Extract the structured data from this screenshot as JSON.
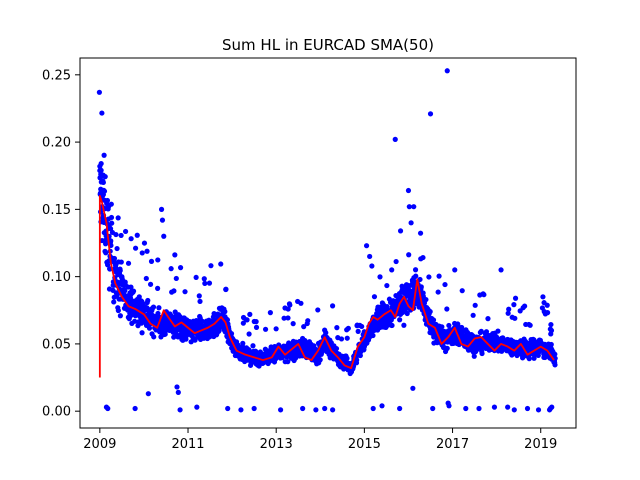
{
  "chart_data": {
    "type": "scatter",
    "title": "Sum HL in EURCAD SMA(50)",
    "xlabel": "",
    "ylabel": "",
    "xlim": [
      2008.55,
      2019.8
    ],
    "ylim": [
      -0.0125,
      0.2625
    ],
    "x_ticks": [
      {
        "value": 2009,
        "label": "2009"
      },
      {
        "value": 2011,
        "label": "2011"
      },
      {
        "value": 2013,
        "label": "2013"
      },
      {
        "value": 2015,
        "label": "2015"
      },
      {
        "value": 2017,
        "label": "2017"
      },
      {
        "value": 2019,
        "label": "2019"
      }
    ],
    "y_ticks": [
      {
        "value": 0.0,
        "label": "0.00"
      },
      {
        "value": 0.05,
        "label": "0.05"
      },
      {
        "value": 0.1,
        "label": "0.10"
      },
      {
        "value": 0.15,
        "label": "0.15"
      },
      {
        "value": 0.2,
        "label": "0.20"
      },
      {
        "value": 0.25,
        "label": "0.25"
      }
    ],
    "grid": false,
    "legend": "none",
    "colors": {
      "points": "#0000ff",
      "sma": "#ff0000",
      "axes": "#000000"
    },
    "sma_series": {
      "x": [
        2009.0,
        2009.0,
        2009.05,
        2009.15,
        2009.25,
        2009.35,
        2009.5,
        2009.65,
        2009.8,
        2010.0,
        2010.15,
        2010.3,
        2010.45,
        2010.55,
        2010.7,
        2010.85,
        2011.0,
        2011.15,
        2011.3,
        2011.45,
        2011.6,
        2011.75,
        2011.85,
        2011.95,
        2012.1,
        2012.3,
        2012.5,
        2012.7,
        2012.9,
        2013.05,
        2013.2,
        2013.35,
        2013.5,
        2013.65,
        2013.8,
        2013.95,
        2014.1,
        2014.25,
        2014.4,
        2014.55,
        2014.7,
        2014.85,
        2015.0,
        2015.1,
        2015.2,
        2015.3,
        2015.45,
        2015.6,
        2015.7,
        2015.8,
        2015.9,
        2016.0,
        2016.1,
        2016.2,
        2016.3,
        2016.45,
        2016.6,
        2016.75,
        2016.9,
        2017.05,
        2017.2,
        2017.35,
        2017.5,
        2017.65,
        2017.8,
        2017.95,
        2018.1,
        2018.25,
        2018.4,
        2018.55,
        2018.7,
        2018.85,
        2019.0,
        2019.15,
        2019.3
      ],
      "y": [
        0.025,
        0.16,
        0.155,
        0.14,
        0.11,
        0.095,
        0.085,
        0.078,
        0.076,
        0.072,
        0.065,
        0.062,
        0.075,
        0.07,
        0.063,
        0.066,
        0.062,
        0.058,
        0.06,
        0.062,
        0.065,
        0.07,
        0.066,
        0.055,
        0.045,
        0.042,
        0.04,
        0.038,
        0.04,
        0.048,
        0.042,
        0.046,
        0.05,
        0.04,
        0.038,
        0.045,
        0.055,
        0.045,
        0.04,
        0.034,
        0.032,
        0.048,
        0.055,
        0.065,
        0.07,
        0.068,
        0.072,
        0.075,
        0.07,
        0.08,
        0.085,
        0.078,
        0.075,
        0.098,
        0.08,
        0.065,
        0.062,
        0.05,
        0.055,
        0.062,
        0.05,
        0.048,
        0.054,
        0.055,
        0.05,
        0.045,
        0.05,
        0.048,
        0.045,
        0.05,
        0.042,
        0.045,
        0.048,
        0.045,
        0.038
      ]
    },
    "level_anchors": {
      "x": [
        2009.0,
        2009.1,
        2009.25,
        2009.5,
        2009.8,
        2010.1,
        2010.4,
        2010.7,
        2011.0,
        2011.3,
        2011.6,
        2011.8,
        2012.0,
        2012.3,
        2012.7,
        2013.0,
        2013.3,
        2013.6,
        2013.9,
        2014.1,
        2014.4,
        2014.7,
        2015.0,
        2015.3,
        2015.6,
        2015.9,
        2016.2,
        2016.5,
        2016.8,
        2017.1,
        2017.5,
        2017.9,
        2018.3,
        2018.7,
        2019.0,
        2019.3
      ],
      "y": [
        0.16,
        0.15,
        0.115,
        0.088,
        0.077,
        0.07,
        0.064,
        0.065,
        0.06,
        0.06,
        0.064,
        0.068,
        0.05,
        0.042,
        0.039,
        0.043,
        0.045,
        0.047,
        0.04,
        0.052,
        0.04,
        0.033,
        0.052,
        0.068,
        0.073,
        0.082,
        0.092,
        0.065,
        0.053,
        0.058,
        0.05,
        0.052,
        0.048,
        0.046,
        0.048,
        0.04
      ]
    },
    "outlier_points": {
      "x": [
        2008.99,
        2009.0,
        2009.03,
        2009.05,
        2009.08,
        2009.02,
        2009.15,
        2009.18,
        2009.8,
        2010.1,
        2010.4,
        2010.42,
        2010.45,
        2010.75,
        2010.78,
        2010.82,
        2011.2,
        2011.9,
        2012.2,
        2012.5,
        2013.1,
        2013.6,
        2013.9,
        2014.1,
        2014.28,
        2015.05,
        2015.12,
        2015.2,
        2015.4,
        2015.62,
        2015.7,
        2015.8,
        2016.0,
        2016.02,
        2016.06,
        2016.1,
        2016.12,
        2016.5,
        2016.55,
        2016.88,
        2016.9,
        2016.92,
        2017.05,
        2017.3,
        2017.6,
        2017.95,
        2018.1,
        2018.25,
        2018.4,
        2018.7,
        2018.95,
        2019.05,
        2019.08,
        2019.2,
        2019.22,
        2019.25
      ],
      "y": [
        0.237,
        0.182,
        0.184,
        0.175,
        0.17,
        0.165,
        0.003,
        0.002,
        0.002,
        0.013,
        0.15,
        0.142,
        0.13,
        0.018,
        0.014,
        0.001,
        0.003,
        0.002,
        0.001,
        0.002,
        0.001,
        0.002,
        0.001,
        0.002,
        0.001,
        0.123,
        0.115,
        0.002,
        0.004,
        0.105,
        0.202,
        0.002,
        0.164,
        0.152,
        0.14,
        0.017,
        0.152,
        0.221,
        0.002,
        0.253,
        0.006,
        0.004,
        0.105,
        0.002,
        0.002,
        0.003,
        0.105,
        0.003,
        0.001,
        0.002,
        0.001,
        0.085,
        0.074,
        0.001,
        0.002,
        0.003
      ]
    }
  }
}
